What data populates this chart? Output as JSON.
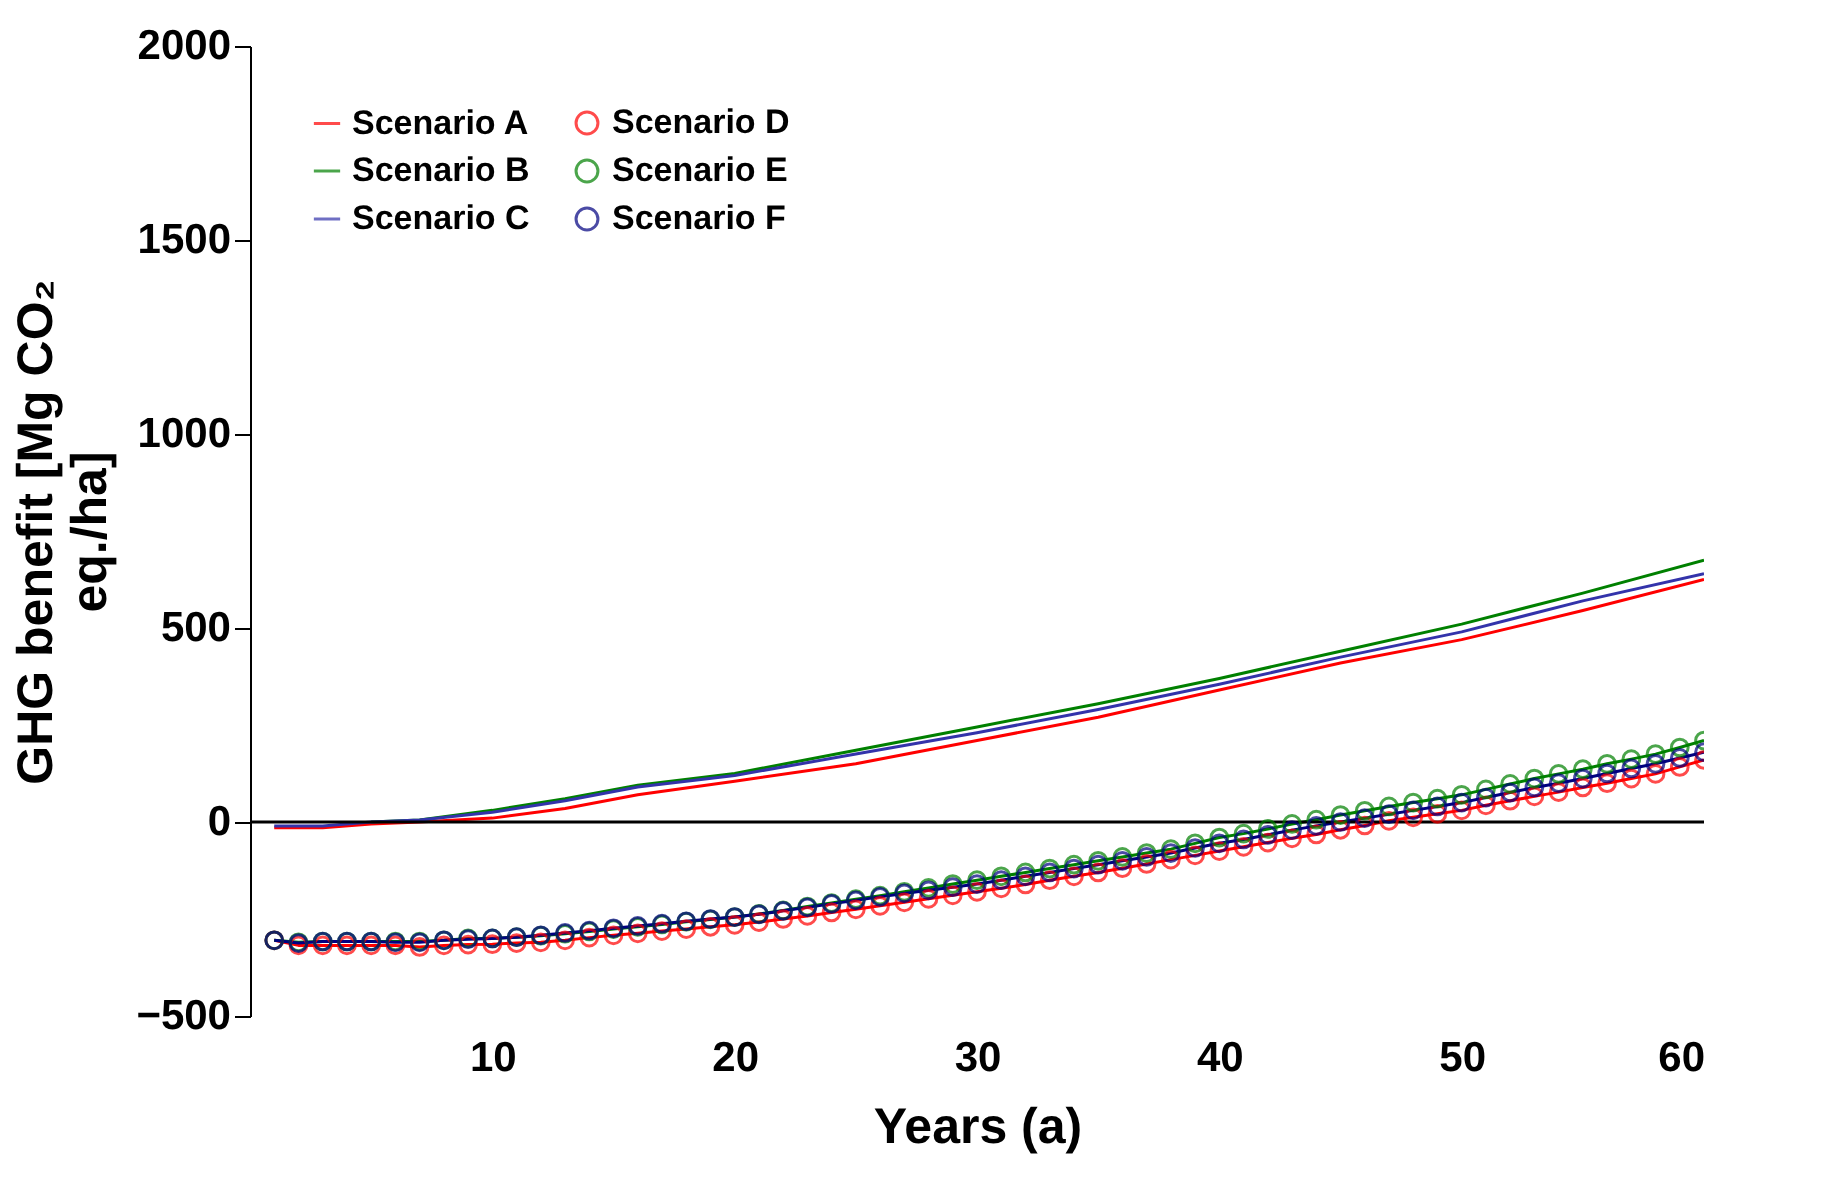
{
  "chart_data": {
    "type": "line",
    "xlabel": "Years (a)",
    "ylabel": "GHG benefit [Mg CO₂ eq./ha]",
    "xlim": [
      0,
      60
    ],
    "xticks": [
      10,
      20,
      30,
      40,
      50,
      60
    ],
    "ylim": [
      -500,
      2000
    ],
    "yticks": [
      -500,
      0,
      500,
      1000,
      1500,
      2000
    ],
    "grid": false,
    "legend": "top left",
    "ref_lines": [
      {
        "axis": "y",
        "value": 0,
        "color": "#000000"
      }
    ],
    "series": [
      {
        "name": "Scenario A",
        "color": "#ff0000",
        "marker": "none",
        "x": [
          1,
          3,
          5,
          7,
          10,
          13,
          16,
          20,
          25,
          30,
          35,
          40,
          45,
          50,
          55,
          60
        ],
        "values": [
          -15,
          -15,
          -5,
          0,
          10,
          35,
          70,
          105,
          150,
          210,
          270,
          340,
          410,
          470,
          545,
          625
        ]
      },
      {
        "name": "Scenario B",
        "color": "#008000",
        "marker": "none",
        "x": [
          5,
          7,
          10,
          13,
          16,
          20,
          25,
          30,
          35,
          40,
          45,
          50,
          55,
          60
        ],
        "values": [
          0,
          5,
          30,
          60,
          95,
          125,
          185,
          245,
          305,
          370,
          440,
          510,
          590,
          675
        ]
      },
      {
        "name": "Scenario C",
        "color": "#3333aa",
        "marker": "none",
        "x": [
          1,
          3,
          5,
          7,
          10,
          13,
          16,
          20,
          25,
          30,
          35,
          40,
          45,
          50,
          55,
          60
        ],
        "values": [
          -10,
          -10,
          0,
          5,
          25,
          55,
          90,
          120,
          175,
          230,
          290,
          355,
          425,
          490,
          570,
          640
        ]
      },
      {
        "name": "Scenario D",
        "color": "#ff0000",
        "marker": "circle",
        "x": [
          1,
          2,
          3,
          4,
          5,
          6,
          7,
          8,
          9,
          10,
          11,
          12,
          13,
          14,
          15,
          16,
          17,
          18,
          19,
          20,
          21,
          22,
          23,
          24,
          25,
          26,
          27,
          28,
          29,
          30,
          31,
          32,
          33,
          34,
          35,
          36,
          37,
          38,
          39,
          40,
          41,
          42,
          43,
          44,
          45,
          46,
          47,
          48,
          49,
          50,
          51,
          52,
          53,
          54,
          55,
          56,
          57,
          58,
          59,
          60
        ],
        "values": [
          -305,
          -318,
          -318,
          -318,
          -318,
          -318,
          -322,
          -318,
          -316,
          -315,
          -312,
          -310,
          -305,
          -298,
          -292,
          -287,
          -281,
          -276,
          -270,
          -265,
          -258,
          -250,
          -242,
          -233,
          -225,
          -216,
          -207,
          -198,
          -189,
          -180,
          -171,
          -161,
          -150,
          -140,
          -130,
          -119,
          -108,
          -97,
          -86,
          -75,
          -64,
          -53,
          -42,
          -32,
          -20,
          -9,
          3,
          12,
          21,
          30,
          43,
          55,
          66,
          77,
          89,
          100,
          112,
          124,
          142,
          160
        ]
      },
      {
        "name": "Scenario E",
        "color": "#008000",
        "marker": "circle",
        "x": [
          1,
          2,
          3,
          4,
          5,
          6,
          7,
          8,
          9,
          10,
          11,
          12,
          13,
          14,
          15,
          16,
          17,
          18,
          19,
          20,
          21,
          22,
          23,
          24,
          25,
          26,
          27,
          28,
          29,
          30,
          31,
          32,
          33,
          34,
          35,
          36,
          37,
          38,
          39,
          40,
          41,
          42,
          43,
          44,
          45,
          46,
          47,
          48,
          49,
          50,
          51,
          52,
          53,
          54,
          55,
          56,
          57,
          58,
          59,
          60
        ],
        "values": [
          -305,
          -310,
          -308,
          -308,
          -308,
          -308,
          -308,
          -305,
          -300,
          -300,
          -297,
          -293,
          -288,
          -282,
          -276,
          -270,
          -264,
          -257,
          -251,
          -245,
          -237,
          -228,
          -218,
          -209,
          -199,
          -190,
          -180,
          -170,
          -160,
          -150,
          -140,
          -130,
          -120,
          -110,
          -100,
          -90,
          -80,
          -70,
          -55,
          -40,
          -30,
          -18,
          -5,
          6,
          18,
          29,
          40,
          50,
          60,
          70,
          84,
          98,
          112,
          124,
          136,
          150,
          162,
          175,
          192,
          210
        ]
      },
      {
        "name": "Scenario F",
        "color": "#000080",
        "marker": "circle",
        "x": [
          1,
          2,
          3,
          4,
          5,
          6,
          7,
          8,
          9,
          10,
          11,
          12,
          13,
          14,
          15,
          16,
          17,
          18,
          19,
          20,
          21,
          22,
          23,
          24,
          25,
          26,
          27,
          28,
          29,
          30,
          31,
          32,
          33,
          34,
          35,
          36,
          37,
          38,
          39,
          40,
          41,
          42,
          43,
          44,
          45,
          46,
          47,
          48,
          49,
          50,
          51,
          52,
          53,
          54,
          55,
          56,
          57,
          58,
          59,
          60
        ],
        "values": [
          -305,
          -312,
          -308,
          -308,
          -308,
          -310,
          -310,
          -305,
          -302,
          -300,
          -297,
          -292,
          -286,
          -280,
          -274,
          -268,
          -262,
          -256,
          -250,
          -245,
          -238,
          -229,
          -220,
          -211,
          -202,
          -193,
          -184,
          -176,
          -168,
          -160,
          -150,
          -140,
          -130,
          -120,
          -110,
          -100,
          -90,
          -80,
          -67,
          -55,
          -45,
          -33,
          -21,
          -10,
          0,
          10,
          20,
          30,
          40,
          50,
          63,
          76,
          89,
          100,
          112,
          125,
          138,
          150,
          165,
          180
        ]
      }
    ]
  }
}
